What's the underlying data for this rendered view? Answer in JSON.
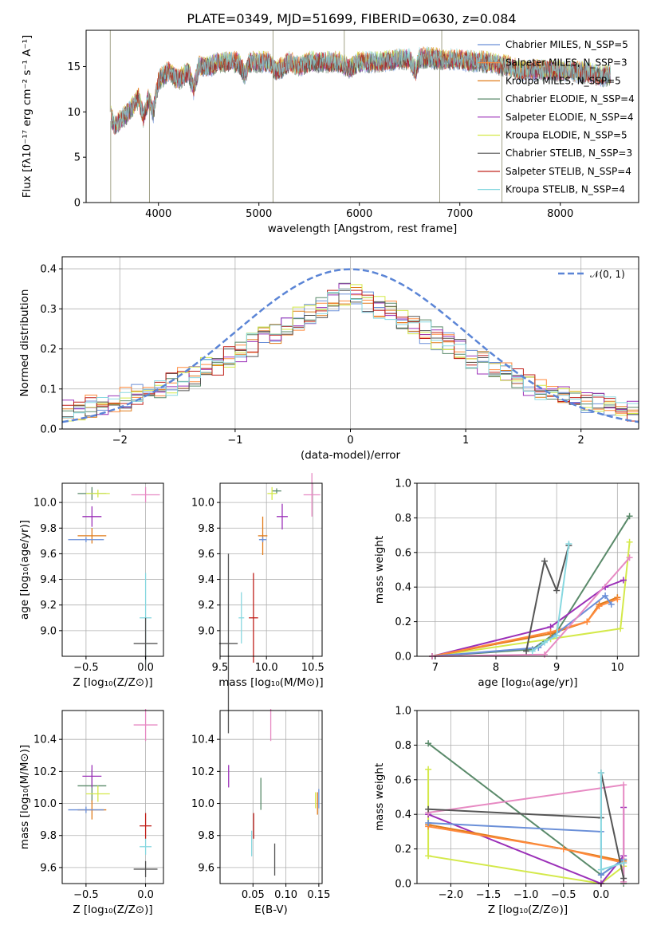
{
  "figure_title": "PLATE=0349, MJD=51699, FIBERID=0630, z=0.084",
  "chart_data": [
    {
      "id": "spectrum",
      "type": "line",
      "xlabel": "wavelength [Angstrom, rest frame]",
      "ylabel": "Flux [fλ10⁻¹⁷ erg cm⁻² s⁻¹ A⁻¹]",
      "xlim": [
        3280,
        8780
      ],
      "ylim": [
        0,
        19
      ],
      "xticks": [
        4000,
        5000,
        6000,
        7000,
        8000
      ],
      "yticks": [
        0,
        5,
        10,
        15
      ],
      "grid": false,
      "legend_position": "right",
      "series": [
        {
          "name": "Chabrier MILES, N_SSP=5",
          "color": "#6a8fd8"
        },
        {
          "name": "Salpeter MILES, N_SSP=3",
          "color": "#ff8a3d"
        },
        {
          "name": "Kroupa MILES, N_SSP=5",
          "color": "#e07b1a"
        },
        {
          "name": "Chabrier ELODIE, N_SSP=4",
          "color": "#5a8a6a"
        },
        {
          "name": "Salpeter ELODIE, N_SSP=4",
          "color": "#9b30b8"
        },
        {
          "name": "Kroupa ELODIE, N_SSP=5",
          "color": "#d4e94a"
        },
        {
          "name": "Chabrier STELIB, N_SSP=3",
          "color": "#555555"
        },
        {
          "name": "Salpeter STELIB, N_SSP=4",
          "color": "#c0201a"
        },
        {
          "name": "Kroupa STELIB, N_SSP=4",
          "color": "#88d8e0"
        }
      ],
      "envelope": {
        "x": [
          3530,
          3560,
          3620,
          3700,
          3800,
          3850,
          3900,
          3950,
          4000,
          4100,
          4200,
          4300,
          4350,
          4400,
          4500,
          4600,
          4700,
          4800,
          4861,
          4900,
          5000,
          5100,
          5175,
          5300,
          5400,
          5500,
          5600,
          5700,
          5800,
          5890,
          6000,
          6100,
          6200,
          6300,
          6400,
          6500,
          6563,
          6600,
          6700,
          6800,
          6900,
          7000,
          7100,
          7200,
          7300,
          7400,
          7500,
          7600,
          7700,
          7800,
          7900,
          8000,
          8100,
          8200,
          8300,
          8400,
          8500
        ],
        "y": [
          9.5,
          8.5,
          9.0,
          10.0,
          11.5,
          9.5,
          11.5,
          10.0,
          13.5,
          14.5,
          13.5,
          14.5,
          12.5,
          15.0,
          15.0,
          15.5,
          15.5,
          15.5,
          14.0,
          15.5,
          15.5,
          15.5,
          14.5,
          15.5,
          15.0,
          15.5,
          15.5,
          15.5,
          15.5,
          14.8,
          15.5,
          15.5,
          15.5,
          15.7,
          15.8,
          15.8,
          14.5,
          16.0,
          16.0,
          15.8,
          15.8,
          15.8,
          15.6,
          15.6,
          15.4,
          15.2,
          15.0,
          14.5,
          14.6,
          14.6,
          14.6,
          14.5,
          14.5,
          14.4,
          14.2,
          14.0,
          14.0
        ]
      }
    },
    {
      "id": "residuals",
      "type": "line",
      "xlabel": "(data-model)/error",
      "ylabel": "Normed distribution",
      "xlim": [
        -2.5,
        2.5
      ],
      "ylim": [
        0,
        0.43
      ],
      "xticks": [
        -2,
        -1,
        0,
        1,
        2
      ],
      "yticks": [
        0.0,
        0.1,
        0.2,
        0.3,
        0.4
      ],
      "grid": true,
      "legend_position": "top-right",
      "reference_curve": {
        "name": "𝒩(0, 1)",
        "color": "#5b85d6",
        "style": "dashed",
        "mu": 0,
        "sigma": 1
      }
    },
    {
      "id": "age-vs-Z",
      "type": "scatter",
      "xlabel": "Z [log₁₀(Z/Z⊙)]",
      "ylabel": "age  [log₁₀(age/yr)]",
      "xlim": [
        -0.7,
        0.15
      ],
      "ylim": [
        8.8,
        10.15
      ],
      "xticks": [
        -0.5,
        0.0
      ],
      "yticks": [
        9.0,
        9.2,
        9.4,
        9.6,
        9.8,
        10.0
      ],
      "grid": true,
      "points": [
        {
          "x": -0.45,
          "y": 10.07,
          "xerr": 0.12,
          "yerr": 0.05,
          "color": "#5a8a6a"
        },
        {
          "x": -0.4,
          "y": 10.07,
          "xerr": 0.1,
          "yerr": 0.03,
          "color": "#d4e94a"
        },
        {
          "x": -0.45,
          "y": 9.89,
          "xerr": 0.08,
          "yerr": 0.08,
          "color": "#9b30b8"
        },
        {
          "x": -0.45,
          "y": 9.74,
          "xerr": 0.12,
          "yerr": 0.06,
          "color": "#e07b1a"
        },
        {
          "x": -0.5,
          "y": 9.71,
          "xerr": 0.15,
          "yerr": 0.02,
          "color": "#6a8fd8"
        },
        {
          "x": 0.0,
          "y": 10.06,
          "xerr": 0.12,
          "yerr": 0.06,
          "color": "#e78ac3"
        },
        {
          "x": 0.0,
          "y": 9.1,
          "xerr": 0.05,
          "yerr": 0.35,
          "color": "#88d8e0"
        },
        {
          "x": 0.0,
          "y": 8.9,
          "xerr": 0.1,
          "yerr": 0.2,
          "color": "#555555"
        }
      ]
    },
    {
      "id": "age-vs-mass",
      "type": "scatter",
      "xlabel": "mass [log₁₀(M/M⊙)]",
      "ylabel": "",
      "xlim": [
        9.5,
        10.6
      ],
      "ylim": [
        8.8,
        10.15
      ],
      "xticks": [
        9.5,
        10.0,
        10.5
      ],
      "yticks": [
        9.0,
        9.2,
        9.4,
        9.6,
        9.8,
        10.0
      ],
      "grid": true,
      "points": [
        {
          "x": 10.11,
          "y": 10.09,
          "xerr": 0.05,
          "yerr": 0.02,
          "color": "#5a8a6a"
        },
        {
          "x": 10.06,
          "y": 10.07,
          "xerr": 0.05,
          "yerr": 0.05,
          "color": "#d4e94a"
        },
        {
          "x": 10.17,
          "y": 9.89,
          "xerr": 0.06,
          "yerr": 0.1,
          "color": "#9b30b8"
        },
        {
          "x": 9.96,
          "y": 9.74,
          "xerr": 0.05,
          "yerr": 0.15,
          "color": "#e07b1a"
        },
        {
          "x": 9.96,
          "y": 9.71,
          "xerr": 0.04,
          "yerr": 0.02,
          "color": "#6a8fd8"
        },
        {
          "x": 10.49,
          "y": 10.06,
          "xerr": 0.09,
          "yerr": 0.17,
          "color": "#e78ac3"
        },
        {
          "x": 9.73,
          "y": 9.1,
          "xerr": 0.03,
          "yerr": 0.2,
          "color": "#88d8e0"
        },
        {
          "x": 9.86,
          "y": 9.1,
          "xerr": 0.05,
          "yerr": 0.35,
          "color": "#c0201a"
        },
        {
          "x": 9.59,
          "y": 8.9,
          "xerr": 0.1,
          "yerr": 0.7,
          "color": "#555555"
        }
      ]
    },
    {
      "id": "weight-vs-age",
      "type": "line",
      "xlabel": "age  [log₁₀(age/yr)]",
      "ylabel": "mass weight",
      "xlim": [
        6.7,
        10.35
      ],
      "ylim": [
        0,
        1
      ],
      "xticks": [
        7,
        8,
        9,
        10
      ],
      "yticks": [
        0.0,
        0.2,
        0.4,
        0.6,
        0.8,
        1.0
      ],
      "grid": true,
      "series": [
        {
          "color": "#5a8a6a",
          "x": [
            6.95,
            8.6,
            9.0,
            10.2
          ],
          "y": [
            0.0,
            0.04,
            0.14,
            0.81
          ]
        },
        {
          "color": "#d4e94a",
          "x": [
            6.95,
            8.9,
            10.05,
            10.2
          ],
          "y": [
            0.0,
            0.1,
            0.16,
            0.66
          ]
        },
        {
          "color": "#9b30b8",
          "x": [
            6.95,
            8.9,
            9.8,
            10.1
          ],
          "y": [
            0.0,
            0.17,
            0.4,
            0.44
          ]
        },
        {
          "color": "#e07b1a",
          "x": [
            6.95,
            8.9,
            9.5,
            9.7,
            10.0
          ],
          "y": [
            0.0,
            0.13,
            0.2,
            0.3,
            0.34
          ]
        },
        {
          "color": "#ff8a3d",
          "x": [
            6.95,
            8.9,
            9.5,
            9.7,
            10.0
          ],
          "y": [
            0.0,
            0.14,
            0.2,
            0.29,
            0.33
          ]
        },
        {
          "color": "#6a8fd8",
          "x": [
            6.95,
            8.7,
            9.8,
            9.9
          ],
          "y": [
            0.0,
            0.05,
            0.35,
            0.3
          ]
        },
        {
          "color": "#e78ac3",
          "x": [
            6.95,
            8.8,
            10.2
          ],
          "y": [
            0.0,
            0.01,
            0.57
          ]
        },
        {
          "color": "#555555",
          "x": [
            8.5,
            8.8,
            9.0,
            9.2
          ],
          "y": [
            0.03,
            0.55,
            0.38,
            0.64
          ]
        },
        {
          "color": "#88d8e0",
          "x": [
            8.6,
            8.8,
            9.0,
            9.2
          ],
          "y": [
            0.03,
            0.08,
            0.12,
            0.65
          ]
        }
      ]
    },
    {
      "id": "mass-vs-Z",
      "type": "scatter",
      "xlabel": "Z [log₁₀(Z/Z⊙)]",
      "ylabel": "mass [log₁₀(M/M⊙)]",
      "xlim": [
        -0.7,
        0.15
      ],
      "ylim": [
        9.5,
        10.58
      ],
      "xticks": [
        -0.5,
        0.0
      ],
      "yticks": [
        9.6,
        9.8,
        10.0,
        10.2,
        10.4
      ],
      "grid": true,
      "points": [
        {
          "x": -0.45,
          "y": 10.11,
          "xerr": 0.12,
          "yerr": 0.1,
          "color": "#5a8a6a"
        },
        {
          "x": -0.4,
          "y": 10.06,
          "xerr": 0.1,
          "yerr": 0.05,
          "color": "#d4e94a"
        },
        {
          "x": -0.45,
          "y": 10.17,
          "xerr": 0.08,
          "yerr": 0.07,
          "color": "#9b30b8"
        },
        {
          "x": -0.45,
          "y": 9.96,
          "xerr": 0.12,
          "yerr": 0.06,
          "color": "#e07b1a"
        },
        {
          "x": -0.5,
          "y": 9.96,
          "xerr": 0.15,
          "yerr": 0.02,
          "color": "#6a8fd8"
        },
        {
          "x": 0.0,
          "y": 10.49,
          "xerr": 0.1,
          "yerr": 0.1,
          "color": "#e78ac3"
        },
        {
          "x": 0.0,
          "y": 9.73,
          "xerr": 0.05,
          "yerr": 0.05,
          "color": "#88d8e0"
        },
        {
          "x": 0.0,
          "y": 9.86,
          "xerr": 0.05,
          "yerr": 0.08,
          "color": "#c0201a"
        },
        {
          "x": 0.0,
          "y": 9.59,
          "xerr": 0.1,
          "yerr": 0.05,
          "color": "#555555"
        }
      ]
    },
    {
      "id": "mass-vs-EBV",
      "type": "scatter",
      "xlabel": "E(B-V)",
      "ylabel": "",
      "xlim": [
        0.0,
        0.155
      ],
      "ylim": [
        9.5,
        10.58
      ],
      "xticks": [
        0.05,
        0.1,
        0.15
      ],
      "yticks": [
        9.6,
        9.8,
        10.0,
        10.2,
        10.4
      ],
      "grid": true,
      "points": [
        {
          "x": 0.013,
          "y": 10.17,
          "yerr": 0.07,
          "color": "#9b30b8"
        },
        {
          "x": 0.077,
          "y": 10.49,
          "yerr": 0.1,
          "color": "#e78ac3"
        },
        {
          "x": 0.062,
          "y": 10.06,
          "yerr": 0.1,
          "color": "#5a8a6a"
        },
        {
          "x": 0.145,
          "y": 10.02,
          "yerr": 0.05,
          "color": "#d4e94a"
        },
        {
          "x": 0.148,
          "y": 10.0,
          "yerr": 0.07,
          "color": "#e07b1a"
        },
        {
          "x": 0.15,
          "y": 10.03,
          "yerr": 0.06,
          "color": "#6a8fd8"
        },
        {
          "x": 0.051,
          "y": 9.86,
          "yerr": 0.08,
          "color": "#c0201a"
        },
        {
          "x": 0.048,
          "y": 9.75,
          "yerr": 0.08,
          "color": "#88d8e0"
        },
        {
          "x": 0.083,
          "y": 9.65,
          "yerr": 0.1,
          "color": "#555555"
        }
      ]
    },
    {
      "id": "weight-vs-Z",
      "type": "line",
      "xlabel": "Z [log₁₀(Z/Z⊙)]",
      "ylabel": "mass weight",
      "xlim": [
        -2.45,
        0.5
      ],
      "ylim": [
        0,
        1
      ],
      "xticks": [
        -2.0,
        -1.5,
        -1.0,
        -0.5,
        0.0
      ],
      "yticks": [
        0.0,
        0.2,
        0.4,
        0.6,
        0.8,
        1.0
      ],
      "grid": true,
      "series": [
        {
          "color": "#5a8a6a",
          "x": [
            -2.3,
            0.0,
            0.3,
            0.3
          ],
          "y": [
            0.81,
            0.05,
            0.14,
            0.0
          ]
        },
        {
          "color": "#d4e94a",
          "x": [
            -2.3,
            -2.3,
            0.0,
            0.3,
            0.3
          ],
          "y": [
            0.66,
            0.16,
            0.0,
            0.1,
            0.14
          ]
        },
        {
          "color": "#9b30b8",
          "x": [
            -2.3,
            0.0,
            0.3,
            0.3
          ],
          "y": [
            0.4,
            0.0,
            0.16,
            0.44
          ]
        },
        {
          "color": "#e07b1a",
          "x": [
            -2.3,
            -0.5,
            0.3
          ],
          "y": [
            0.34,
            0.2,
            0.13
          ]
        },
        {
          "color": "#ff8a3d",
          "x": [
            -2.3,
            -0.5,
            0.3
          ],
          "y": [
            0.33,
            0.2,
            0.12
          ]
        },
        {
          "color": "#6a8fd8",
          "x": [
            -2.3,
            0.0,
            0.0,
            0.3
          ],
          "y": [
            0.35,
            0.3,
            0.05,
            0.14
          ]
        },
        {
          "color": "#e78ac3",
          "x": [
            -2.3,
            0.3,
            0.3
          ],
          "y": [
            0.41,
            0.57,
            0.01
          ]
        },
        {
          "color": "#555555",
          "x": [
            -2.3,
            0.0,
            0.0,
            0.3
          ],
          "y": [
            0.43,
            0.38,
            0.64,
            0.03
          ]
        },
        {
          "color": "#88d8e0",
          "x": [
            0.0,
            0.0,
            0.3
          ],
          "y": [
            0.64,
            0.08,
            0.12
          ]
        }
      ]
    }
  ]
}
